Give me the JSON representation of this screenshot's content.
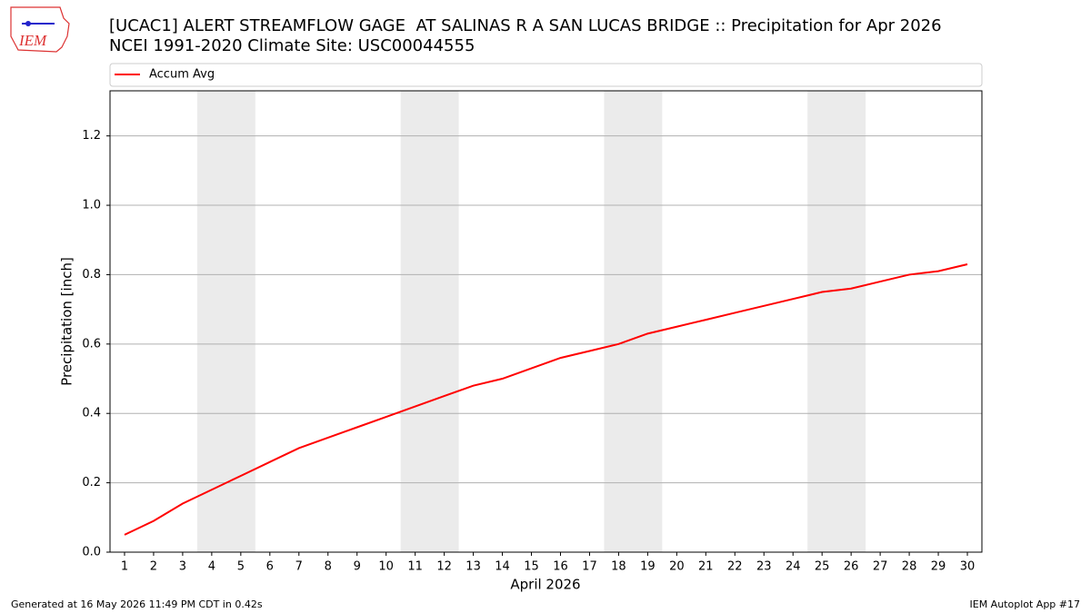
{
  "chart_data": {
    "type": "line",
    "title": "[UCAC1] ALERT STREAMFLOW GAGE  AT SALINAS R A SAN LUCAS BRIDGE :: Precipitation for Apr 2026",
    "subtitle": "NCEI 1991-2020 Climate Site: USC00044555",
    "xlabel": "April 2026",
    "ylabel": "Precipitation [inch]",
    "x": [
      1,
      2,
      3,
      4,
      5,
      6,
      7,
      8,
      9,
      10,
      11,
      12,
      13,
      14,
      15,
      16,
      17,
      18,
      19,
      20,
      21,
      22,
      23,
      24,
      25,
      26,
      27,
      28,
      29,
      30
    ],
    "series": [
      {
        "name": "Accum Avg",
        "color": "#ff0000",
        "values": [
          0.05,
          0.09,
          0.14,
          0.18,
          0.22,
          0.26,
          0.3,
          0.33,
          0.36,
          0.39,
          0.42,
          0.45,
          0.48,
          0.5,
          0.53,
          0.56,
          0.58,
          0.6,
          0.63,
          0.65,
          0.67,
          0.69,
          0.71,
          0.73,
          0.75,
          0.76,
          0.78,
          0.8,
          0.81,
          0.83
        ]
      }
    ],
    "xlim": [
      0.5,
      30.5
    ],
    "xticks": [
      1,
      2,
      3,
      4,
      5,
      6,
      7,
      8,
      9,
      10,
      11,
      12,
      13,
      14,
      15,
      16,
      17,
      18,
      19,
      20,
      21,
      22,
      23,
      24,
      25,
      26,
      27,
      28,
      29,
      30
    ],
    "ylim": [
      0,
      1.33
    ],
    "yticks": [
      {
        "value": 0,
        "label": "0.0"
      },
      0.2,
      0.4,
      0.6,
      0.8,
      {
        "value": 1,
        "label": "1.0"
      },
      1.2
    ],
    "grid": true,
    "legend": "top",
    "shaded_spans": [
      [
        3.5,
        5.5
      ],
      [
        10.5,
        12.5
      ],
      [
        17.5,
        19.5
      ],
      [
        24.5,
        26.5
      ]
    ],
    "shade_color": "#ebebeb"
  },
  "logo_text": "IEM",
  "footer_left": "Generated at 16 May 2026 11:49 PM CDT in 0.42s",
  "footer_right": "IEM Autoplot App #17"
}
